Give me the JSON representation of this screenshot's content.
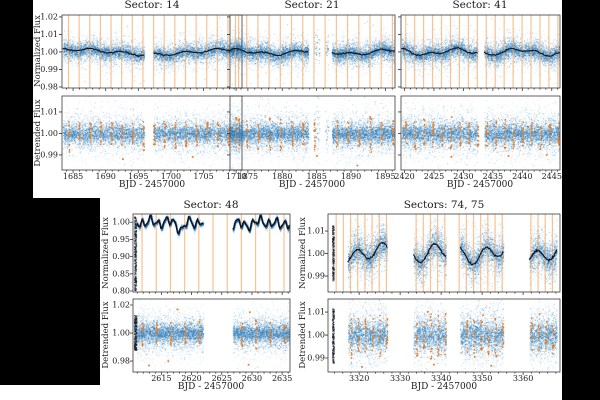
{
  "page": {
    "background": "#000000",
    "figure_background": "#ffffff"
  },
  "colors": {
    "scatter": "#2f7cb8",
    "trend_line": "#0d1420",
    "transit_line": "#f5a963",
    "transit_marker": "#e87c22",
    "axis": "#3a3a3a",
    "tick_text": "#1c1c1c"
  },
  "chart_data": {
    "type": "scatter",
    "description": "Five light-curve sub-figures, each with a Normalized Flux panel (black trend line, orange transit lines) over a Detrended Flux panel (orange in-transit points).",
    "figures": [
      {
        "title": "Sector: 14",
        "xlabel": "BJD - 2457000",
        "xlim": [
          1683.3,
          1710.9
        ],
        "xticks": [
          "1685",
          "1690",
          "1695",
          "1700",
          "1705",
          "1710"
        ],
        "minor_step": 1,
        "chunks": [
          [
            1683.4,
            1695.9,
            1,
            1
          ],
          [
            1697.3,
            1710.8,
            1,
            1
          ]
        ],
        "transit_times": [
          1684.3,
          1685.93,
          1687.56,
          1689.19,
          1690.82,
          1692.45,
          1694.08,
          1695.71,
          1697.34,
          1698.97,
          1700.6,
          1702.23,
          1703.86,
          1705.49,
          1707.12,
          1708.75,
          1710.38
        ],
        "trend": {
          "a1": 0.0015,
          "f1": 0.25,
          "p1": 1.2,
          "a2": 0.0008,
          "f2": 1.3,
          "p2": 2.1
        },
        "panels": [
          {
            "ylabel": "Normalized Flux",
            "show_ylabels": true,
            "kind": "normalized",
            "yticks": [
              "0.98",
              "0.99",
              "1.00",
              "1.01",
              "1.02"
            ],
            "ylim": [
              0.9794,
              1.0211
            ],
            "sigma": 0.003,
            "n": 3200
          },
          {
            "ylabel": "Detrended Flux",
            "show_ylabels": true,
            "kind": "detrended",
            "yticks": [
              "0.99",
              "1.00",
              "1.01"
            ],
            "ylim": [
              0.983,
              1.0174
            ],
            "sigma": 0.0035,
            "n": 3200,
            "column_half": 0.0068,
            "stray_points": [
              [
                1692.5,
                0.9885
              ],
              [
                1703.2,
                0.9895
              ]
            ]
          }
        ]
      },
      {
        "title": "Sector: 21",
        "xlabel": "BJD - 2457000",
        "xlim": [
          1872.4,
          1896.4
        ],
        "xticks": [
          "1875",
          "1880",
          "1885",
          "1890",
          "1895"
        ],
        "minor_step": 1,
        "chunks": [
          [
            1872.5,
            1883.8,
            1,
            1
          ],
          [
            1884.55,
            1885.45,
            0.3,
            2.6
          ],
          [
            1886.25,
            1886.75,
            0.25,
            1.8
          ],
          [
            1887.2,
            1896.3,
            1,
            1
          ]
        ],
        "transit_times": [
          1873.2,
          1874.83,
          1876.46,
          1878.09,
          1879.72,
          1881.35,
          1882.98,
          1884.61,
          1886.24,
          1887.87,
          1889.5,
          1891.13,
          1892.76,
          1894.39,
          1896.02
        ],
        "trend": {
          "a1": 0.0012,
          "f1": 0.55,
          "p1": 1.2,
          "a2": 0.0008,
          "f2": 1.5,
          "p2": 0.4
        },
        "panels": [
          {
            "ylabel": "",
            "show_ylabels": false,
            "kind": "normalized",
            "yticks": [
              "0.98",
              "0.99",
              "1.00",
              "1.01",
              "1.02"
            ],
            "ylim": [
              0.9794,
              1.0211
            ],
            "sigma": 0.003,
            "n": 3200
          },
          {
            "ylabel": "",
            "show_ylabels": false,
            "kind": "detrended",
            "yticks": [
              "0.99",
              "1.00",
              "1.01"
            ],
            "ylim": [
              0.983,
              1.0174
            ],
            "sigma": 0.0035,
            "n": 3200,
            "column_half": 0.0068,
            "stray_points": [
              [
                1890.8,
                0.9855
              ],
              [
                1884.9,
                0.99
              ]
            ]
          }
        ]
      },
      {
        "title": "Sector: 41",
        "xlabel": "BJD - 2457000",
        "xlim": [
          2419.4,
          2446.4
        ],
        "xticks": [
          "2420",
          "2425",
          "2430",
          "2435",
          "2440",
          "2445"
        ],
        "minor_step": 1,
        "chunks": [
          [
            2419.5,
            2432.4,
            1,
            1
          ],
          [
            2433.5,
            2446.3,
            1,
            1
          ]
        ],
        "transit_times": [
          2420.2,
          2421.72,
          2423.24,
          2424.76,
          2426.28,
          2427.8,
          2429.32,
          2430.84,
          2432.36,
          2433.88,
          2435.4,
          2436.92,
          2438.44,
          2439.96,
          2441.48,
          2443,
          2444.52,
          2446.04
        ],
        "trend": {
          "a1": 0.0014,
          "f1": 0.6,
          "p1": 2.2,
          "a2": 0.0009,
          "f2": 1.4,
          "p2": 1.0
        },
        "panels": [
          {
            "ylabel": "",
            "show_ylabels": false,
            "kind": "normalized",
            "yticks": [
              "0.98",
              "0.99",
              "1.00",
              "1.01",
              "1.02"
            ],
            "ylim": [
              0.9794,
              1.0211
            ],
            "sigma": 0.0032,
            "n": 3200
          },
          {
            "ylabel": "",
            "show_ylabels": false,
            "kind": "detrended",
            "yticks": [
              "0.99",
              "1.00",
              "1.01"
            ],
            "ylim": [
              0.983,
              1.0174
            ],
            "sigma": 0.0038,
            "n": 3200,
            "column_half": 0.0068,
            "stray_points": [
              [
                2437.5,
                0.99
              ],
              [
                2427.8,
                0.9895
              ],
              [
                2444.0,
                0.9905
              ]
            ]
          }
        ]
      },
      {
        "title": "Sector: 48",
        "xlabel": "BJD - 2457000",
        "xlim": [
          2610.3,
          2636.3
        ],
        "xticks": [
          "2615",
          "2620",
          "2625",
          "2630",
          "2635"
        ],
        "minor_step": 1,
        "chunks": [
          [
            2610.9,
            2621.9,
            1,
            1
          ],
          [
            2626.8,
            2636.2,
            1,
            1
          ]
        ],
        "transit_times": [
          2611.8,
          2614.15,
          2616.5,
          2618.85,
          2621.2,
          2623.55,
          2625.9,
          2628.25,
          2630.6,
          2632.95,
          2635.3
        ],
        "trend": {
          "a1": 0.011,
          "f1": 4.8,
          "p1": 0.5,
          "a2": 0.007,
          "f2": 2.1,
          "p2": 1.7,
          "a3": 0.004,
          "f3": 9,
          "p3": 0.3,
          "dips": [
            [
              2618.3,
              0.5,
              0.022
            ],
            [
              2628.8,
              0.6,
              0.012
            ],
            [
              2634.5,
              0.5,
              0.01
            ]
          ]
        },
        "panels": [
          {
            "ylabel": "Normalized Flux",
            "show_ylabels": true,
            "kind": "normalized",
            "dense": true,
            "yticks": [
              "0.80",
              "0.85",
              "0.90",
              "0.95",
              "1.00"
            ],
            "ylim": [
              0.797,
              1.024
            ],
            "sigma": 0.0028,
            "n": 2600,
            "edge_smear": [
              2610.45,
              2610.8,
              0.802,
              1.018,
              340
            ]
          },
          {
            "ylabel": "Detrended Flux",
            "show_ylabels": true,
            "kind": "detrended",
            "yticks": [
              "0.98",
              "1.00",
              "1.02"
            ],
            "ylim": [
              0.9722,
              1.0243
            ],
            "sigma": 0.0052,
            "n": 3000,
            "column_half": 0.009,
            "edge_smear": [
              2610.45,
              2610.85,
              0.988,
              1.013,
              260
            ],
            "stray_points": [
              [
                2612.8,
                0.9775
              ],
              [
                2629.3,
                0.978
              ],
              [
                2616.0,
                0.9805
              ],
              [
                2617.5,
                1.0175
              ],
              [
                2629.5,
                1.0155
              ]
            ]
          }
        ]
      },
      {
        "title": "Sectors: 74, 75",
        "xlabel": "BJD - 2457000",
        "xlim": [
          3312.4,
          3369.0
        ],
        "xticks": [
          "3320",
          "3330",
          "3340",
          "3350",
          "3360"
        ],
        "minor_step": 2,
        "chunks": [
          [
            3317.2,
            3326.8,
            1,
            1
          ],
          [
            3333.2,
            3341.2,
            1,
            1
          ],
          [
            3344.6,
            3355.2,
            1,
            1
          ],
          [
            3361.5,
            3368.2,
            1,
            1
          ]
        ],
        "transit_times": [
          3314.4,
          3316.15,
          3317.9,
          3319.65,
          3321.4,
          3323.15,
          3324.9,
          3326.65,
          3333.9,
          3335.65,
          3337.4,
          3339.15,
          3340.9,
          3344.4,
          3346.15,
          3347.9,
          3349.65,
          3351.4,
          3353.15,
          3354.9,
          3361.9,
          3363.65,
          3365.4,
          3367.15
        ],
        "trend": {
          "a1": 0.003,
          "f1": 1.0,
          "p1": 0.8,
          "a2": 0.0018,
          "f2": 0.42,
          "p2": 2.5
        },
        "panels": [
          {
            "ylabel": "Normalized Flux",
            "show_ylabels": true,
            "kind": "normalized",
            "yticks": [
              "0.99",
              "1.00",
              "1.01"
            ],
            "ylim": [
              0.9829,
              1.0176
            ],
            "sigma": 0.0045,
            "n": 3400,
            "edge_smear": [
              3313.35,
              3313.8,
              0.988,
              1.013,
              240
            ]
          },
          {
            "ylabel": "Detrended Flux",
            "show_ylabels": true,
            "kind": "detrended",
            "yticks": [
              "0.99",
              "1.00",
              "1.01"
            ],
            "ylim": [
              0.9839,
              1.0157
            ],
            "sigma": 0.005,
            "n": 3400,
            "column_half": 0.0085,
            "edge_smear": [
              3313.35,
              3313.8,
              0.988,
              1.012,
              240
            ],
            "stray_points": [
              [
                3320.5,
                0.9865
              ],
              [
                3352.0,
                0.987
              ],
              [
                3338.0,
                0.9875
              ],
              [
                3336.5,
                1.0105
              ],
              [
                3350.0,
                1.009
              ],
              [
                3363.8,
                1.0095
              ]
            ]
          }
        ]
      }
    ]
  }
}
